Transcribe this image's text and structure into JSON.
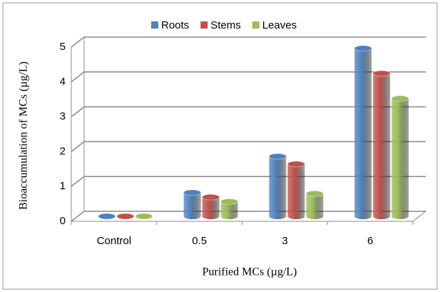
{
  "chart_data": {
    "type": "bar3d",
    "x_label": "Purified MCs (µg/L)",
    "y_label": "Bioaccumulation of  MCs  (µg/L)",
    "categories": [
      "Control",
      "0.5",
      "3",
      "6"
    ],
    "series": [
      {
        "name": "Roots",
        "color": "#4f81bd",
        "values": [
          0,
          0.68,
          1.72,
          4.82
        ]
      },
      {
        "name": "Stems",
        "color": "#c0504d",
        "values": [
          0,
          0.55,
          1.5,
          4.1
        ]
      },
      {
        "name": "Leaves",
        "color": "#9bbb59",
        "values": [
          0,
          0.42,
          0.65,
          3.38
        ]
      }
    ],
    "ylim": [
      0,
      5
    ],
    "yticks": [
      0,
      1,
      2,
      3,
      4,
      5
    ],
    "grid": true,
    "legend": "top"
  }
}
